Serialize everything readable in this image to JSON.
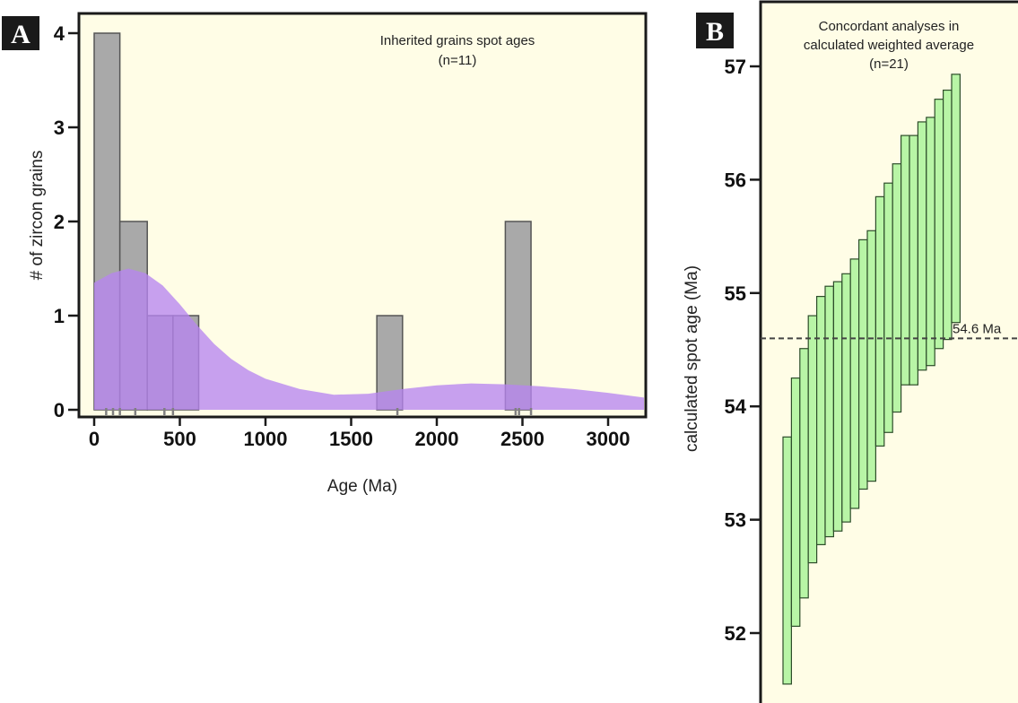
{
  "chart_data": [
    {
      "panel_label": "A",
      "type": "bar",
      "subtype": "histogram-with-density",
      "title": "Inherited grains spot ages",
      "subtitle": "(n=11)",
      "xlabel": "Age (Ma)",
      "ylabel": "# of zircon grains",
      "xlim": [
        -50,
        3250
      ],
      "ylim": [
        0,
        4.2
      ],
      "xticks": [
        0,
        500,
        1000,
        1500,
        2000,
        2500,
        3000
      ],
      "yticks": [
        0,
        1,
        2,
        3,
        4
      ],
      "bins": [
        {
          "x0": 0,
          "x1": 150,
          "count": 4
        },
        {
          "x0": 150,
          "x1": 310,
          "count": 2
        },
        {
          "x0": 310,
          "x1": 460,
          "count": 1
        },
        {
          "x0": 460,
          "x1": 610,
          "count": 1
        },
        {
          "x0": 1650,
          "x1": 1800,
          "count": 1
        },
        {
          "x0": 2400,
          "x1": 2550,
          "count": 2
        }
      ],
      "density_curve": {
        "x": [
          0,
          100,
          200,
          300,
          400,
          500,
          600,
          700,
          800,
          900,
          1000,
          1200,
          1400,
          1600,
          1800,
          2000,
          2200,
          2400,
          2600,
          2800,
          3000,
          3250
        ],
        "y": [
          1.35,
          1.45,
          1.5,
          1.45,
          1.32,
          1.12,
          0.9,
          0.7,
          0.54,
          0.42,
          0.33,
          0.22,
          0.16,
          0.17,
          0.22,
          0.26,
          0.28,
          0.27,
          0.25,
          0.22,
          0.18,
          0.13
        ]
      },
      "rug_ages": [
        70,
        110,
        150,
        240,
        410,
        460,
        1770,
        2460,
        2480,
        2550
      ],
      "colors": {
        "background": "#fffde6",
        "bar": "#a9a9a9",
        "density": "#b785f0",
        "rug": "#808080"
      }
    },
    {
      "panel_label": "B",
      "type": "bar",
      "subtype": "weighted-average-error-bars",
      "title": "Concordant analyses in",
      "title_line2": "calculated weighted average",
      "subtitle": "(n=21)",
      "ylabel": "calculated spot age (Ma)",
      "ylim": [
        51.45,
        57.45
      ],
      "yticks": [
        52,
        53,
        54,
        55,
        56,
        57
      ],
      "mean": 54.6,
      "mean_label": "54.6 Ma",
      "boxes": [
        {
          "low": 51.55,
          "high": 53.73
        },
        {
          "low": 52.06,
          "high": 54.25
        },
        {
          "low": 52.31,
          "high": 54.51
        },
        {
          "low": 52.62,
          "high": 54.8
        },
        {
          "low": 52.78,
          "high": 54.97
        },
        {
          "low": 52.85,
          "high": 55.06
        },
        {
          "low": 52.9,
          "high": 55.1
        },
        {
          "low": 52.98,
          "high": 55.17
        },
        {
          "low": 53.1,
          "high": 55.3
        },
        {
          "low": 53.27,
          "high": 55.47
        },
        {
          "low": 53.34,
          "high": 55.55
        },
        {
          "low": 53.65,
          "high": 55.85
        },
        {
          "low": 53.77,
          "high": 55.97
        },
        {
          "low": 53.95,
          "high": 56.14
        },
        {
          "low": 54.19,
          "high": 56.39
        },
        {
          "low": 54.19,
          "high": 56.39
        },
        {
          "low": 54.32,
          "high": 56.51
        },
        {
          "low": 54.36,
          "high": 56.55
        },
        {
          "low": 54.51,
          "high": 56.71
        },
        {
          "low": 54.59,
          "high": 56.79
        },
        {
          "low": 54.74,
          "high": 56.93
        }
      ],
      "colors": {
        "background": "#fffde6",
        "box": "#b8f5a6",
        "mean_line": "#444444"
      }
    }
  ]
}
